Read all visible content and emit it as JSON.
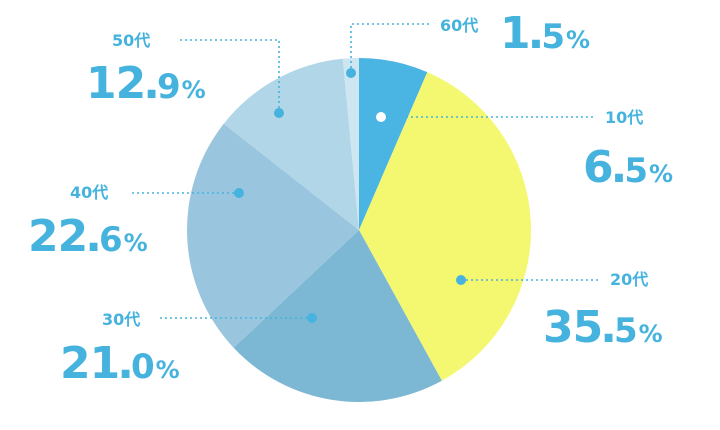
{
  "chart_data": {
    "type": "pie",
    "start_angle_deg": 0,
    "direction": "clockwise",
    "slices": [
      {
        "label": "10代",
        "value": 6.5,
        "display": {
          "int": "6",
          "dec": "5",
          "sign": "%"
        },
        "color": "#4ab5e3"
      },
      {
        "label": "20代",
        "value": 35.5,
        "display": {
          "int": "35",
          "dec": "5",
          "sign": "%"
        },
        "color": "#f4f871"
      },
      {
        "label": "30代",
        "value": 21.0,
        "display": {
          "int": "21",
          "dec": "0",
          "sign": "%"
        },
        "color": "#7cb7d4"
      },
      {
        "label": "40代",
        "value": 22.6,
        "display": {
          "int": "22",
          "dec": "6",
          "sign": "%"
        },
        "color": "#99c6de"
      },
      {
        "label": "50代",
        "value": 12.9,
        "display": {
          "int": "12",
          "dec": "9",
          "sign": "%"
        },
        "color": "#b1d6e8"
      },
      {
        "label": "60代",
        "value": 1.5,
        "display": {
          "int": "1",
          "dec": "5",
          "sign": "%"
        },
        "color": "#cde6f2"
      }
    ],
    "leader_color": "#45b3dd"
  }
}
